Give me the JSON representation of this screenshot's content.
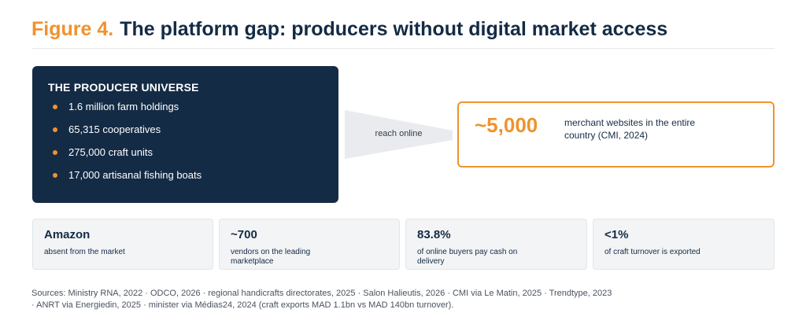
{
  "figure": {
    "number_label": "Figure 4.",
    "title": "The platform gap: producers without digital market access"
  },
  "colors": {
    "navy": "#142b45",
    "accent_orange": "#f0922e",
    "funnel_grey": "#e9ebef",
    "card_grey": "#f3f4f6"
  },
  "producer_universe": {
    "title": "THE PRODUCER UNIVERSE",
    "items": [
      "1.6 million farm holdings",
      "65,315 cooperatives",
      "275,000 craft units",
      "17,000 artisanal fishing boats"
    ]
  },
  "funnel": {
    "label": "reach online"
  },
  "result": {
    "value": "~5,000",
    "description": "merchant websites in the entire country (CMI, 2024)"
  },
  "stats": [
    {
      "value": "Amazon",
      "label": "absent from the market"
    },
    {
      "value": "~700",
      "label": "vendors on the leading marketplace"
    },
    {
      "value": "83.8%",
      "label": "of online buyers pay cash on delivery"
    },
    {
      "value": "<1%",
      "label": "of craft turnover is exported"
    }
  ],
  "sources": "Sources: Ministry RNA, 2022 · ODCO, 2026 · regional handicrafts directorates, 2025 · Salon Halieutis, 2026 · CMI via Le Matin, 2025 · Trendtype, 2023 · ANRT via Energiedin, 2025 · minister via Médias24, 2024 (craft exports MAD 1.1bn vs MAD 140bn turnover)."
}
